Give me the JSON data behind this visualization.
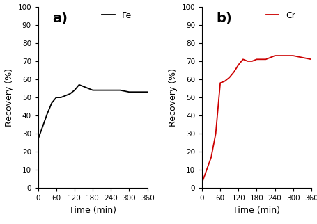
{
  "fe_time": [
    0,
    15,
    30,
    45,
    60,
    75,
    90,
    105,
    120,
    135,
    150,
    165,
    180,
    210,
    240,
    270,
    300,
    330,
    360
  ],
  "fe_recovery": [
    27,
    34,
    41,
    47,
    50,
    50,
    51,
    52,
    54,
    57,
    56,
    55,
    54,
    54,
    54,
    54,
    53,
    53,
    53
  ],
  "cr_time": [
    0,
    15,
    30,
    45,
    60,
    75,
    90,
    105,
    120,
    135,
    150,
    165,
    180,
    210,
    240,
    270,
    300,
    330,
    360
  ],
  "cr_recovery": [
    3,
    10,
    17,
    30,
    58,
    59,
    61,
    64,
    68,
    71,
    70,
    70,
    71,
    71,
    73,
    73,
    73,
    72,
    71
  ],
  "fe_color": "#000000",
  "cr_color": "#cc0000",
  "ylabel": "Recovery (%)",
  "xlabel": "Time (min)",
  "ylim": [
    0,
    100
  ],
  "xlim": [
    0,
    360
  ],
  "xticks": [
    0,
    60,
    120,
    180,
    240,
    300,
    360
  ],
  "yticks": [
    0,
    10,
    20,
    30,
    40,
    50,
    60,
    70,
    80,
    90,
    100
  ],
  "label_a": "a)",
  "label_b": "b)",
  "legend_fe": "Fe",
  "legend_cr": "Cr",
  "label_fontsize": 14,
  "tick_fontsize": 7.5,
  "axis_label_fontsize": 9,
  "legend_fontsize": 9
}
